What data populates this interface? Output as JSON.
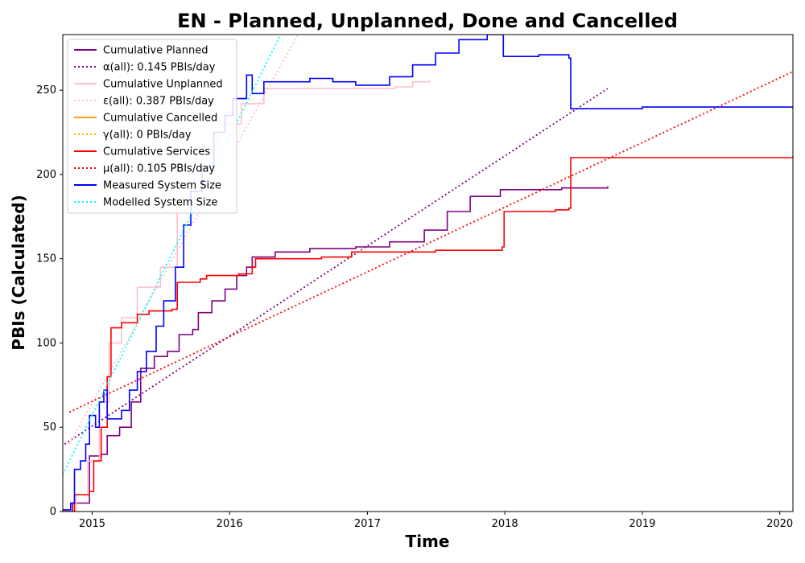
{
  "chart_data": {
    "type": "line",
    "title": "EN - Planned, Unplanned, Done  and Cancelled",
    "xlabel": "Time",
    "ylabel": "PBIs (Calculated)",
    "xlim": [
      "2014-10-15",
      "2020-02-05"
    ],
    "ylim": [
      0,
      283
    ],
    "x_ticks": [
      "2015",
      "2016",
      "2017",
      "2018",
      "2019",
      "2020"
    ],
    "y_ticks": [
      0,
      50,
      100,
      150,
      200,
      250
    ],
    "grid": false,
    "legend_position": "top-left",
    "series": [
      {
        "name": "Cumulative Planned",
        "style": "solid",
        "color": "#800080",
        "points": [
          [
            "2014-10-15",
            0
          ],
          [
            "2014-11-10",
            5
          ],
          [
            "2014-12-25",
            33
          ],
          [
            "2015-01-25",
            34
          ],
          [
            "2015-02-10",
            45
          ],
          [
            "2015-03-15",
            50
          ],
          [
            "2015-04-15",
            65
          ],
          [
            "2015-05-10",
            85
          ],
          [
            "2015-06-15",
            92
          ],
          [
            "2015-07-20",
            95
          ],
          [
            "2015-08-20",
            105
          ],
          [
            "2015-09-25",
            108
          ],
          [
            "2015-10-10",
            118
          ],
          [
            "2015-11-15",
            125
          ],
          [
            "2015-12-20",
            132
          ],
          [
            "2016-01-20",
            140
          ],
          [
            "2016-02-15",
            145
          ],
          [
            "2016-03-01",
            151
          ],
          [
            "2016-05-01",
            154
          ],
          [
            "2016-08-01",
            156
          ],
          [
            "2016-12-01",
            157
          ],
          [
            "2017-03-01",
            160
          ],
          [
            "2017-06-01",
            167
          ],
          [
            "2017-08-01",
            178
          ],
          [
            "2017-10-01",
            187
          ],
          [
            "2017-12-20",
            191
          ],
          [
            "2018-06-01",
            192
          ],
          [
            "2018-10-01",
            193
          ]
        ]
      },
      {
        "name": "α(all): 0.145 PBIs/day",
        "style": "dotted",
        "color": "#800080",
        "points": [
          [
            "2014-10-20",
            40
          ],
          [
            "2018-10-01",
            251
          ]
        ]
      },
      {
        "name": "Cumulative Unplanned",
        "style": "solid",
        "color": "#ffc0cb",
        "points": [
          [
            "2014-10-15",
            0
          ],
          [
            "2014-11-20",
            10
          ],
          [
            "2014-12-20",
            30
          ],
          [
            "2015-01-20",
            65
          ],
          [
            "2015-02-15",
            100
          ],
          [
            "2015-03-20",
            115
          ],
          [
            "2015-05-01",
            133
          ],
          [
            "2015-07-01",
            145
          ],
          [
            "2015-08-15",
            185
          ],
          [
            "2015-10-01",
            215
          ],
          [
            "2015-12-01",
            230
          ],
          [
            "2016-02-01",
            242
          ],
          [
            "2016-04-01",
            251
          ],
          [
            "2016-12-01",
            251
          ],
          [
            "2017-03-15",
            252
          ],
          [
            "2017-05-01",
            255
          ],
          [
            "2017-06-15",
            256
          ]
        ]
      },
      {
        "name": "ε(all): 0.387 PBIs/day",
        "style": "dotted",
        "color": "#ffc0cb",
        "points": [
          [
            "2014-11-01",
            40
          ],
          [
            "2016-07-01",
            283
          ]
        ]
      },
      {
        "name": "Cumulative Cancelled",
        "style": "solid",
        "color": "#ffa500",
        "points": []
      },
      {
        "name": "γ(all): 0 PBIs/day",
        "style": "dotted",
        "color": "#ffa500",
        "points": []
      },
      {
        "name": "Cumulative Services",
        "style": "solid",
        "color": "#ff0000",
        "points": [
          [
            "2014-10-15",
            0
          ],
          [
            "2014-11-15",
            10
          ],
          [
            "2014-12-25",
            12
          ],
          [
            "2015-01-05",
            30
          ],
          [
            "2015-01-25",
            50
          ],
          [
            "2015-02-10",
            80
          ],
          [
            "2015-02-20",
            109
          ],
          [
            "2015-03-20",
            112
          ],
          [
            "2015-05-01",
            117
          ],
          [
            "2015-06-01",
            119
          ],
          [
            "2015-08-01",
            120
          ],
          [
            "2015-08-15",
            136
          ],
          [
            "2015-10-15",
            138
          ],
          [
            "2015-11-01",
            140
          ],
          [
            "2016-01-25",
            141
          ],
          [
            "2016-03-01",
            145
          ],
          [
            "2016-03-10",
            150
          ],
          [
            "2016-09-01",
            151
          ],
          [
            "2016-11-20",
            154
          ],
          [
            "2017-07-01",
            155
          ],
          [
            "2017-12-25",
            157
          ],
          [
            "2017-12-30",
            178
          ],
          [
            "2018-05-15",
            179
          ],
          [
            "2018-06-20",
            180
          ],
          [
            "2018-06-25",
            210
          ],
          [
            "2019-01-01",
            210
          ],
          [
            "2020-02-05",
            211
          ]
        ]
      },
      {
        "name": "μ(all): 0.105 PBIs/day",
        "style": "dotted",
        "color": "#ff0000",
        "points": [
          [
            "2014-11-01",
            59
          ],
          [
            "2020-02-05",
            261
          ]
        ]
      },
      {
        "name": "Measured System Size",
        "style": "solid",
        "color": "#0000ff",
        "points": [
          [
            "2014-10-15",
            1
          ],
          [
            "2014-11-05",
            5
          ],
          [
            "2014-11-15",
            25
          ],
          [
            "2014-12-01",
            30
          ],
          [
            "2014-12-15",
            40
          ],
          [
            "2014-12-25",
            57
          ],
          [
            "2015-01-10",
            50
          ],
          [
            "2015-01-20",
            65
          ],
          [
            "2015-02-01",
            72
          ],
          [
            "2015-02-10",
            55
          ],
          [
            "2015-02-25",
            55
          ],
          [
            "2015-03-20",
            60
          ],
          [
            "2015-04-10",
            72
          ],
          [
            "2015-05-01",
            83
          ],
          [
            "2015-05-25",
            95
          ],
          [
            "2015-06-20",
            110
          ],
          [
            "2015-07-10",
            125
          ],
          [
            "2015-08-10",
            145
          ],
          [
            "2015-09-01",
            170
          ],
          [
            "2015-09-20",
            190
          ],
          [
            "2015-10-20",
            205
          ],
          [
            "2015-11-20",
            225
          ],
          [
            "2015-12-20",
            235
          ],
          [
            "2016-01-10",
            245
          ],
          [
            "2016-02-15",
            259
          ],
          [
            "2016-03-01",
            248
          ],
          [
            "2016-04-01",
            255
          ],
          [
            "2016-08-01",
            257
          ],
          [
            "2016-10-01",
            255
          ],
          [
            "2016-12-01",
            253
          ],
          [
            "2017-03-01",
            258
          ],
          [
            "2017-05-01",
            265
          ],
          [
            "2017-07-01",
            272
          ],
          [
            "2017-09-01",
            280
          ],
          [
            "2017-11-15",
            283
          ],
          [
            "2017-12-25",
            283
          ],
          [
            "2017-12-28",
            270
          ],
          [
            "2018-04-01",
            271
          ],
          [
            "2018-06-20",
            269
          ],
          [
            "2018-06-25",
            239
          ],
          [
            "2019-01-01",
            240
          ],
          [
            "2020-02-05",
            239
          ]
        ]
      },
      {
        "name": "Modelled System Size",
        "style": "dotted",
        "color": "#00ffff",
        "points": [
          [
            "2014-10-15",
            22
          ],
          [
            "2016-05-15",
            283
          ]
        ]
      }
    ]
  }
}
